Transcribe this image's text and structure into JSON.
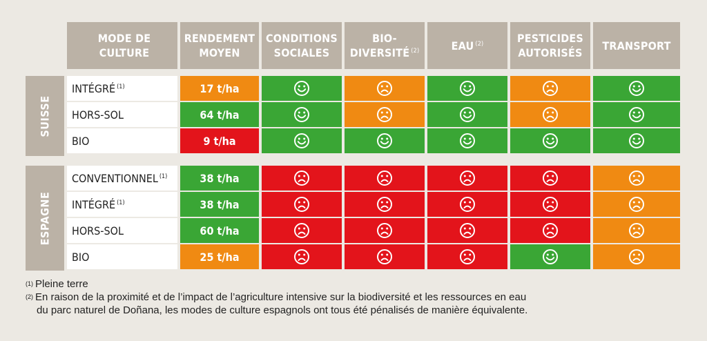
{
  "headers": {
    "mode": "MODE DE CULTURE",
    "rendement": "RENDEMENT\nMOYEN",
    "conditions": "CONDITIONS\nSOCIALES",
    "biodiversite": "BIO-\nDIVERSITÉ",
    "biodiversite_note": "(2)",
    "eau": "EAU",
    "eau_note": "(2)",
    "pesticides": "PESTICIDES\nAUTORISÉS",
    "transport": "TRANSPORT"
  },
  "groups": [
    {
      "name": "SUISSE",
      "rows": [
        {
          "mode": "INTÉGRÉ",
          "note": "(1)",
          "rendement": "17 t/ha",
          "rendement_color": "orange",
          "faces": [
            "happy-green",
            "sad-orange",
            "happy-green",
            "sad-orange",
            "happy-green"
          ]
        },
        {
          "mode": "HORS-SOL",
          "note": "",
          "rendement": "64 t/ha",
          "rendement_color": "green",
          "faces": [
            "happy-green",
            "sad-orange",
            "happy-green",
            "sad-orange",
            "happy-green"
          ]
        },
        {
          "mode": "BIO",
          "note": "",
          "rendement": "9 t/ha",
          "rendement_color": "red",
          "faces": [
            "happy-green",
            "happy-green",
            "happy-green",
            "happy-green",
            "happy-green"
          ]
        }
      ]
    },
    {
      "name": "ESPAGNE",
      "rows": [
        {
          "mode": "CONVENTIONNEL",
          "note": "(1)",
          "rendement": "38 t/ha",
          "rendement_color": "green",
          "faces": [
            "sad-red",
            "sad-red",
            "sad-red",
            "sad-red",
            "sad-orange"
          ]
        },
        {
          "mode": "INTÉGRÉ",
          "note": "(1)",
          "rendement": "38 t/ha",
          "rendement_color": "green",
          "faces": [
            "sad-red",
            "sad-red",
            "sad-red",
            "sad-red",
            "sad-orange"
          ]
        },
        {
          "mode": "HORS-SOL",
          "note": "",
          "rendement": "60 t/ha",
          "rendement_color": "green",
          "faces": [
            "sad-red",
            "sad-red",
            "sad-red",
            "sad-red",
            "sad-orange"
          ]
        },
        {
          "mode": "BIO",
          "note": "",
          "rendement": "25 t/ha",
          "rendement_color": "orange",
          "faces": [
            "sad-red",
            "sad-red",
            "sad-red",
            "happy-green",
            "sad-orange"
          ]
        }
      ]
    }
  ],
  "footnotes": {
    "n1_mark": "(1)",
    "n1": "Pleine terre",
    "n2_mark": "(2)",
    "n2_line1": "En raison de la proximité et de l’impact de l’agriculture intensive sur la biodiversité et les ressources en eau",
    "n2_line2": "du parc naturel de Doñana, les modes de culture espagnols ont tous été pénalisés de manière équivalente."
  },
  "colors": {
    "green": "#3aa635",
    "orange": "#f08a12",
    "red": "#e3141b",
    "header": "#bbb2a6"
  }
}
